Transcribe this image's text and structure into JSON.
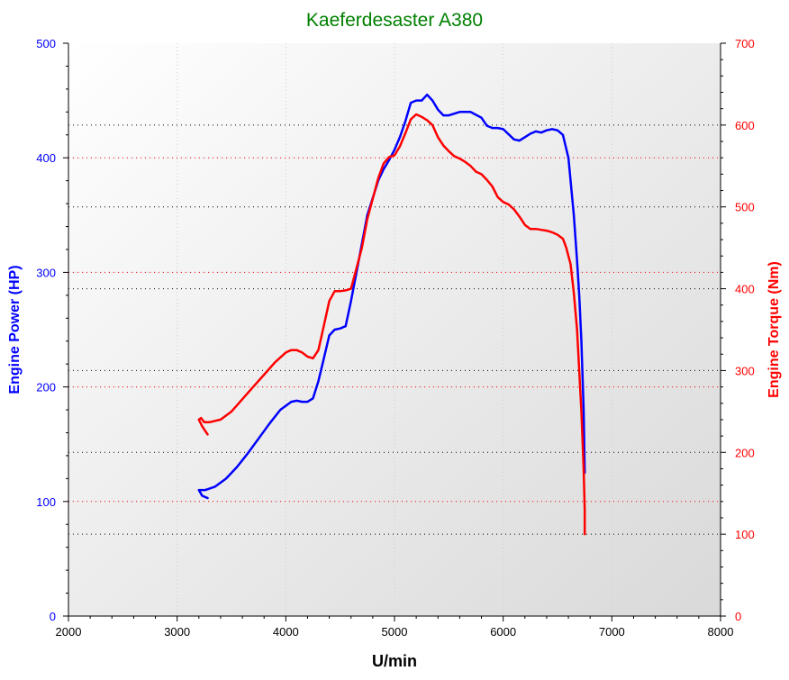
{
  "chart_data": {
    "type": "line",
    "title": "Kaeferdesaster A380",
    "xlabel": "U/min",
    "ylabel_left": "Engine Power (HP)",
    "ylabel_right": "Engine Torque (Nm)",
    "xlim": [
      2000,
      8000
    ],
    "ylim_left": [
      0,
      500
    ],
    "ylim_right": [
      0,
      700
    ],
    "x_ticks": [
      "2000",
      "3000",
      "4000",
      "5000",
      "6000",
      "7000",
      "8000"
    ],
    "y_ticks_left": [
      "0",
      "100",
      "200",
      "300",
      "400",
      "500"
    ],
    "y_ticks_right": [
      "0",
      "100",
      "200",
      "300",
      "400",
      "500",
      "600",
      "700"
    ],
    "grid": true,
    "colors": {
      "power": "#0000ff",
      "torque": "#ff0000",
      "title": "#008000",
      "grid_light": "#cfcfcf"
    },
    "series": [
      {
        "name": "Engine Power (HP)",
        "axis": "left",
        "color": "#0000ff",
        "x": [
          3280,
          3230,
          3200,
          3260,
          3350,
          3450,
          3550,
          3650,
          3750,
          3850,
          3950,
          4050,
          4100,
          4150,
          4200,
          4250,
          4300,
          4350,
          4400,
          4450,
          4500,
          4550,
          4600,
          4650,
          4700,
          4750,
          4800,
          4850,
          4900,
          4950,
          5000,
          5050,
          5100,
          5150,
          5200,
          5250,
          5300,
          5350,
          5400,
          5450,
          5500,
          5600,
          5700,
          5800,
          5850,
          5900,
          5950,
          6000,
          6100,
          6150,
          6200,
          6250,
          6300,
          6350,
          6400,
          6450,
          6500,
          6550,
          6600,
          6620,
          6650,
          6680,
          6700,
          6720,
          6740,
          6750
        ],
        "y": [
          103,
          105,
          110,
          110,
          113,
          120,
          130,
          142,
          155,
          168,
          180,
          187,
          188,
          187,
          187,
          190,
          205,
          225,
          245,
          250,
          251,
          253,
          275,
          300,
          325,
          350,
          365,
          380,
          390,
          398,
          407,
          418,
          432,
          448,
          450,
          450,
          455,
          450,
          442,
          437,
          437,
          440,
          440,
          435,
          428,
          426,
          426,
          425,
          416,
          415,
          418,
          421,
          423,
          422,
          424,
          425,
          424,
          420,
          400,
          380,
          350,
          310,
          280,
          240,
          180,
          125
        ]
      },
      {
        "name": "Engine Torque (Nm)",
        "axis": "right",
        "color": "#ff0000",
        "x": [
          3280,
          3250,
          3230,
          3200,
          3220,
          3250,
          3300,
          3400,
          3500,
          3600,
          3700,
          3800,
          3900,
          4000,
          4050,
          4100,
          4150,
          4200,
          4250,
          4300,
          4350,
          4400,
          4450,
          4500,
          4550,
          4600,
          4650,
          4700,
          4750,
          4800,
          4850,
          4900,
          4950,
          5000,
          5050,
          5100,
          5150,
          5200,
          5250,
          5300,
          5350,
          5400,
          5450,
          5500,
          5550,
          5600,
          5650,
          5700,
          5750,
          5800,
          5850,
          5900,
          5950,
          6000,
          6050,
          6100,
          6150,
          6200,
          6250,
          6300,
          6350,
          6400,
          6450,
          6500,
          6550,
          6580,
          6600,
          6620,
          6650,
          6680,
          6700,
          6720,
          6740,
          6750,
          6750
        ],
        "y": [
          222,
          228,
          232,
          240,
          242,
          237,
          237,
          240,
          250,
          265,
          280,
          295,
          310,
          322,
          325,
          325,
          322,
          317,
          315,
          325,
          355,
          385,
          397,
          397,
          398,
          400,
          425,
          450,
          485,
          510,
          535,
          553,
          561,
          563,
          574,
          590,
          607,
          613,
          610,
          606,
          600,
          585,
          575,
          568,
          562,
          559,
          555,
          550,
          543,
          540,
          533,
          525,
          512,
          506,
          503,
          497,
          488,
          478,
          473,
          473,
          472,
          471,
          469,
          466,
          461,
          450,
          440,
          430,
          395,
          350,
          300,
          250,
          180,
          130,
          100
        ]
      }
    ]
  }
}
